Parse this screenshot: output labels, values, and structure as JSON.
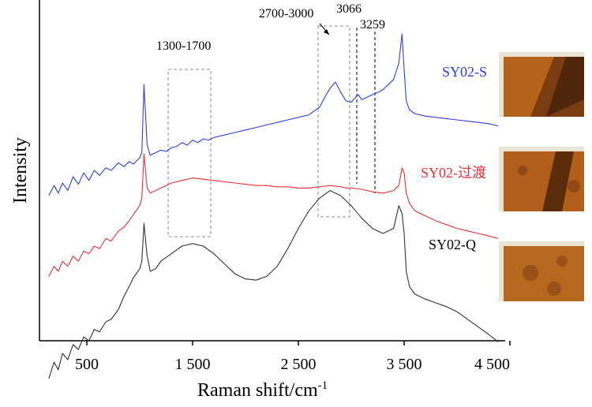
{
  "chart_data": {
    "type": "line",
    "xlabel": "Raman shift/cm",
    "xlabel_sup": "-1",
    "ylabel": "Intensity",
    "xlim": [
      100,
      4500
    ],
    "xticks": [
      {
        "value": 500,
        "label": "500"
      },
      {
        "value": 1500,
        "label": "1 500"
      },
      {
        "value": 2500,
        "label": "2 500"
      },
      {
        "value": 3500,
        "label": "3 500"
      },
      {
        "value": 4500,
        "label": "4 500"
      }
    ],
    "series": [
      {
        "name": "SY02-S",
        "color": "#2b3fe0",
        "x": [
          140,
          190,
          230,
          270,
          320,
          370,
          420,
          470,
          520,
          570,
          620,
          680,
          730,
          800,
          850,
          900,
          940,
          1000,
          1020,
          1040,
          1070,
          1100,
          1150,
          1200,
          1250,
          1300,
          1350,
          1400,
          1450,
          1500,
          1550,
          1600,
          1650,
          1700,
          1800,
          1900,
          2000,
          2100,
          2200,
          2300,
          2400,
          2500,
          2600,
          2700,
          2750,
          2800,
          2850,
          2900,
          2950,
          3000,
          3030,
          3066,
          3100,
          3150,
          3200,
          3259,
          3300,
          3350,
          3400,
          3450,
          3480,
          3500,
          3520,
          3550,
          3600,
          3700,
          3800,
          3900,
          4000,
          4100,
          4200,
          4300,
          4350,
          4390
        ],
        "y": [
          0.7,
          0.78,
          0.72,
          0.8,
          0.74,
          0.85,
          0.79,
          0.88,
          0.82,
          0.9,
          0.86,
          0.92,
          0.9,
          0.96,
          0.93,
          0.97,
          0.95,
          1.0,
          1.04,
          1.58,
          1.1,
          1.02,
          1.04,
          1.06,
          1.05,
          1.08,
          1.09,
          1.12,
          1.1,
          1.14,
          1.12,
          1.15,
          1.14,
          1.16,
          1.18,
          1.2,
          1.22,
          1.24,
          1.26,
          1.28,
          1.3,
          1.32,
          1.34,
          1.4,
          1.48,
          1.55,
          1.6,
          1.52,
          1.45,
          1.44,
          1.47,
          1.5,
          1.46,
          1.48,
          1.5,
          1.52,
          1.54,
          1.58,
          1.62,
          1.75,
          1.98,
          1.7,
          1.45,
          1.38,
          1.35,
          1.33,
          1.32,
          1.31,
          1.3,
          1.29,
          1.28,
          1.27,
          1.26,
          1.25
        ]
      },
      {
        "name": "SY02-过渡",
        "color": "#e8303a",
        "x": [
          140,
          190,
          230,
          270,
          320,
          370,
          420,
          470,
          520,
          570,
          620,
          680,
          730,
          800,
          850,
          900,
          940,
          1000,
          1020,
          1040,
          1070,
          1100,
          1150,
          1200,
          1250,
          1300,
          1400,
          1500,
          1600,
          1700,
          1800,
          1900,
          2000,
          2100,
          2200,
          2300,
          2400,
          2500,
          2600,
          2700,
          2800,
          2900,
          2950,
          3000,
          3100,
          3200,
          3300,
          3400,
          3450,
          3480,
          3500,
          3520,
          3550,
          3600,
          3700,
          3800,
          3900,
          4000,
          4100,
          4200,
          4300,
          4390
        ],
        "y": [
          0.06,
          0.14,
          0.1,
          0.18,
          0.14,
          0.22,
          0.18,
          0.26,
          0.24,
          0.3,
          0.28,
          0.36,
          0.34,
          0.42,
          0.45,
          0.5,
          0.55,
          0.62,
          0.68,
          1.03,
          0.76,
          0.72,
          0.74,
          0.76,
          0.78,
          0.8,
          0.82,
          0.84,
          0.83,
          0.82,
          0.81,
          0.8,
          0.79,
          0.78,
          0.78,
          0.77,
          0.77,
          0.76,
          0.76,
          0.77,
          0.78,
          0.77,
          0.76,
          0.76,
          0.75,
          0.73,
          0.72,
          0.74,
          0.78,
          0.92,
          0.88,
          0.72,
          0.64,
          0.58,
          0.54,
          0.5,
          0.47,
          0.44,
          0.42,
          0.4,
          0.38,
          0.36
        ]
      },
      {
        "name": "SY02-Q",
        "color": "#333333",
        "x": [
          140,
          190,
          230,
          270,
          320,
          370,
          420,
          470,
          520,
          570,
          620,
          680,
          730,
          800,
          850,
          900,
          940,
          1000,
          1020,
          1040,
          1070,
          1100,
          1150,
          1200,
          1300,
          1400,
          1500,
          1600,
          1700,
          1800,
          1900,
          2000,
          2100,
          2200,
          2300,
          2400,
          2500,
          2600,
          2700,
          2800,
          2900,
          3000,
          3100,
          3200,
          3300,
          3400,
          3450,
          3480,
          3500,
          3520,
          3550,
          3600,
          3700,
          3800,
          3900,
          4000,
          4100,
          4200,
          4300,
          4390
        ],
        "y": [
          -0.75,
          -0.62,
          -0.68,
          -0.55,
          -0.6,
          -0.48,
          -0.52,
          -0.42,
          -0.45,
          -0.36,
          -0.38,
          -0.3,
          -0.28,
          -0.2,
          -0.1,
          -0.02,
          0.05,
          0.12,
          0.18,
          0.48,
          0.22,
          0.1,
          0.12,
          0.18,
          0.24,
          0.3,
          0.32,
          0.3,
          0.24,
          0.16,
          0.08,
          0.04,
          0.03,
          0.06,
          0.14,
          0.28,
          0.44,
          0.58,
          0.68,
          0.74,
          0.7,
          0.62,
          0.52,
          0.44,
          0.4,
          0.44,
          0.62,
          0.56,
          0.4,
          0.1,
          -0.02,
          -0.08,
          -0.12,
          -0.15,
          -0.18,
          -0.22,
          -0.28,
          -0.34,
          -0.4,
          -0.46
        ]
      }
    ],
    "annotations": [
      {
        "text": "1300-1700",
        "x_range": [
          1300,
          1700
        ]
      },
      {
        "text": "2700-3000",
        "x_range": [
          2700,
          3000
        ]
      },
      {
        "text": "3066",
        "x": 3066
      },
      {
        "text": "3259",
        "x": 3259
      }
    ],
    "grid": false
  }
}
